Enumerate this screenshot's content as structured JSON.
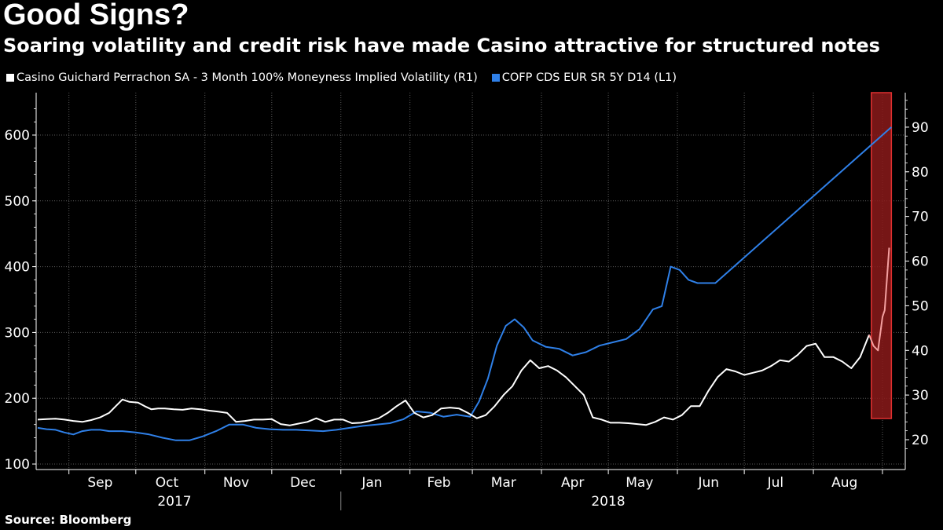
{
  "header": {
    "title": "Good Signs?",
    "subtitle": "Soaring volatility and credit risk have made Casino attractive for structured notes"
  },
  "footer": {
    "source": "Source: Bloomberg"
  },
  "colors": {
    "background": "#000000",
    "vol_line": "#ffffff",
    "cds_line": "#2f80e8",
    "highlight_fill": "#8b1a1a",
    "highlight_stroke": "#e03030",
    "vol_highlight": "#f4a0a0",
    "grid": "#5a5a5a"
  },
  "chart_data": {
    "type": "line",
    "title": "Good Signs?",
    "subtitle": "Soaring volatility and credit risk have made Casino attractive for structured notes",
    "source": "Source: Bloomberg",
    "grid": true,
    "legend_position": "top-left",
    "y_left": {
      "ticks": [
        "100",
        "200",
        "300",
        "400",
        "500",
        "600"
      ],
      "ylim": [
        95,
        650
      ]
    },
    "y_right": {
      "ticks": [
        "20",
        "30",
        "40",
        "50",
        "60",
        "70",
        "80",
        "90"
      ],
      "ylim": [
        17,
        97
      ]
    },
    "x_ticks": [
      "Sep",
      "Oct",
      "Nov",
      "Dec",
      "Jan",
      "Feb",
      "Mar",
      "Apr",
      "May",
      "Jun",
      "Jul",
      "Aug"
    ],
    "years": [
      "2017",
      "2018"
    ],
    "highlight": {
      "x_range": [
        "2018-08-27",
        "2018-09-05"
      ]
    },
    "series": [
      {
        "name": "Casino Guichard Perrachon SA - 3 Month 100% Moneyness Implied Volatility (R1)",
        "axis": "right",
        "x": [
          "2017-08-18",
          "2017-08-22",
          "2017-08-26",
          "2017-08-30",
          "2017-09-03",
          "2017-09-07",
          "2017-09-11",
          "2017-09-15",
          "2017-09-19",
          "2017-09-22",
          "2017-09-25",
          "2017-09-28",
          "2017-10-02",
          "2017-10-05",
          "2017-10-08",
          "2017-10-11",
          "2017-10-14",
          "2017-10-18",
          "2017-10-22",
          "2017-10-26",
          "2017-10-30",
          "2017-11-03",
          "2017-11-07",
          "2017-11-11",
          "2017-11-15",
          "2017-11-19",
          "2017-11-23",
          "2017-11-27",
          "2017-12-01",
          "2017-12-05",
          "2017-12-09",
          "2017-12-13",
          "2017-12-17",
          "2017-12-21",
          "2017-12-25",
          "2017-12-29",
          "2018-01-02",
          "2018-01-06",
          "2018-01-10",
          "2018-01-14",
          "2018-01-18",
          "2018-01-22",
          "2018-01-26",
          "2018-01-30",
          "2018-02-03",
          "2018-02-07",
          "2018-02-11",
          "2018-02-15",
          "2018-02-19",
          "2018-02-23",
          "2018-02-27",
          "2018-03-03",
          "2018-03-07",
          "2018-03-11",
          "2018-03-15",
          "2018-03-19",
          "2018-03-23",
          "2018-03-27",
          "2018-03-31",
          "2018-04-04",
          "2018-04-08",
          "2018-04-12",
          "2018-04-16",
          "2018-04-20",
          "2018-04-24",
          "2018-04-28",
          "2018-05-02",
          "2018-05-06",
          "2018-05-10",
          "2018-05-14",
          "2018-05-18",
          "2018-05-22",
          "2018-05-26",
          "2018-05-30",
          "2018-06-03",
          "2018-06-07",
          "2018-06-11",
          "2018-06-15",
          "2018-06-19",
          "2018-06-23",
          "2018-06-27",
          "2018-07-01",
          "2018-07-05",
          "2018-07-09",
          "2018-07-13",
          "2018-07-17",
          "2018-07-21",
          "2018-07-25",
          "2018-07-29",
          "2018-08-02",
          "2018-08-06",
          "2018-08-10",
          "2018-08-14",
          "2018-08-18",
          "2018-08-22",
          "2018-08-26"
        ],
        "values": [
          24.5,
          24.6,
          24.7,
          24.5,
          24.2,
          24.0,
          24.4,
          25.0,
          26.0,
          27.5,
          29.0,
          28.5,
          28.3,
          27.5,
          26.8,
          27.0,
          27.0,
          26.8,
          26.7,
          27.0,
          26.8,
          26.5,
          26.3,
          26.0,
          24.0,
          24.2,
          24.5,
          24.5,
          24.6,
          23.5,
          23.2,
          23.6,
          24.0,
          24.8,
          24.0,
          24.5,
          24.5,
          23.7,
          23.8,
          24.2,
          24.8,
          26.0,
          27.5,
          28.8,
          26.0,
          25.0,
          25.5,
          27.0,
          27.2,
          27.0,
          26.0,
          24.8,
          25.5,
          27.5,
          30.0,
          32.0,
          35.5,
          37.8,
          36.0,
          36.5,
          35.5,
          34.0,
          32.0,
          30.0,
          25.0,
          24.5,
          23.8,
          23.8,
          23.7,
          23.5,
          23.3,
          24.0,
          25.0,
          24.5,
          25.5,
          27.5,
          27.5,
          31.0,
          34.0,
          35.8,
          35.3,
          34.5,
          35.0,
          35.5,
          36.5,
          37.8,
          37.5,
          39.0,
          41.0,
          41.5,
          38.5,
          38.5,
          37.5,
          36.0,
          38.5,
          43.5
        ]
      },
      {
        "name": "COFP CDS EUR SR 5Y D14  (L1)",
        "axis": "left",
        "x": [
          "2017-08-18",
          "2017-08-22",
          "2017-08-26",
          "2017-08-30",
          "2017-09-03",
          "2017-09-07",
          "2017-09-11",
          "2017-09-15",
          "2017-09-19",
          "2017-09-25",
          "2017-10-01",
          "2017-10-07",
          "2017-10-13",
          "2017-10-19",
          "2017-10-25",
          "2017-10-31",
          "2017-11-06",
          "2017-11-12",
          "2017-11-18",
          "2017-11-24",
          "2017-11-30",
          "2017-12-06",
          "2017-12-12",
          "2017-12-18",
          "2017-12-24",
          "2017-12-30",
          "2018-01-05",
          "2018-01-11",
          "2018-01-17",
          "2018-01-23",
          "2018-01-29",
          "2018-02-04",
          "2018-02-10",
          "2018-02-16",
          "2018-02-22",
          "2018-02-28",
          "2018-03-04",
          "2018-03-08",
          "2018-03-12",
          "2018-03-16",
          "2018-03-20",
          "2018-03-24",
          "2018-03-28",
          "2018-04-03",
          "2018-04-09",
          "2018-04-15",
          "2018-04-21",
          "2018-04-27",
          "2018-05-03",
          "2018-05-09",
          "2018-05-15",
          "2018-05-21",
          "2018-05-25",
          "2018-05-29",
          "2018-06-02",
          "2018-06-06",
          "2018-06-10",
          "2018-06-14",
          "2018-06-18",
          "2018-09-05"
        ],
        "values": [
          155,
          153,
          152,
          148,
          145,
          150,
          152,
          152,
          150,
          150,
          148,
          145,
          140,
          136,
          136,
          142,
          150,
          160,
          160,
          155,
          153,
          152,
          152,
          151,
          150,
          152,
          155,
          158,
          160,
          162,
          168,
          180,
          178,
          172,
          175,
          172,
          195,
          230,
          280,
          310,
          320,
          308,
          288,
          278,
          275,
          265,
          270,
          280,
          285,
          290,
          305,
          335,
          340,
          400,
          395,
          380,
          375,
          375,
          375,
          612
        ]
      }
    ]
  }
}
